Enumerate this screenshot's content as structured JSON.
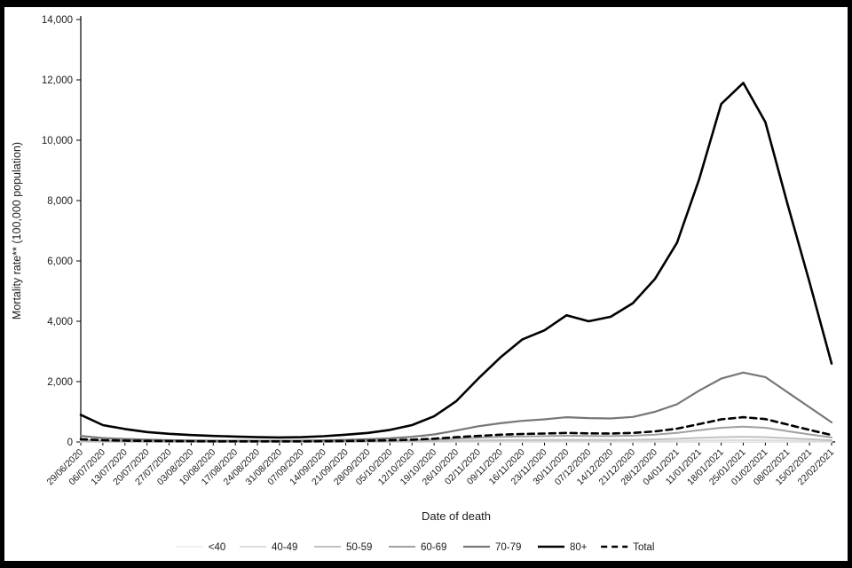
{
  "chart_data": {
    "type": "line",
    "title": "",
    "xlabel": "Date of death",
    "ylabel": "Mortality rate** (100,000 population)",
    "ylim": [
      0,
      14000
    ],
    "grid": false,
    "legend_position": "bottom",
    "yticks": [
      0,
      2000,
      4000,
      6000,
      8000,
      10000,
      12000,
      14000
    ],
    "ytick_labels": [
      "0",
      "2,000",
      "4,000",
      "6,000",
      "8,000",
      "10,000",
      "12,000",
      "14,000"
    ],
    "x": [
      "29/06/2020",
      "06/07/2020",
      "13/07/2020",
      "20/07/2020",
      "27/07/2020",
      "03/08/2020",
      "10/08/2020",
      "17/08/2020",
      "24/08/2020",
      "31/08/2020",
      "07/09/2020",
      "14/09/2020",
      "21/09/2020",
      "28/09/2020",
      "05/10/2020",
      "12/10/2020",
      "19/10/2020",
      "26/10/2020",
      "02/11/2020",
      "09/11/2020",
      "16/11/2020",
      "23/11/2020",
      "30/11/2020",
      "07/12/2020",
      "14/12/2020",
      "21/12/2020",
      "28/12/2020",
      "04/01/2021",
      "11/01/2021",
      "18/01/2021",
      "25/01/2021",
      "01/02/2021",
      "08/02/2021",
      "15/02/2021",
      "22/02/2021"
    ],
    "series": [
      {
        "name": "<40",
        "color": "#efefef",
        "width": 2,
        "dash": null,
        "values": [
          2,
          1,
          1,
          1,
          1,
          0,
          0,
          0,
          0,
          0,
          0,
          0,
          1,
          1,
          1,
          1,
          2,
          2,
          3,
          3,
          4,
          4,
          4,
          4,
          4,
          4,
          5,
          6,
          8,
          9,
          10,
          9,
          7,
          5,
          3
        ]
      },
      {
        "name": "40-49",
        "color": "#dcdcdc",
        "width": 2,
        "dash": null,
        "values": [
          8,
          6,
          4,
          3,
          3,
          2,
          2,
          2,
          2,
          2,
          2,
          2,
          3,
          4,
          5,
          7,
          10,
          14,
          18,
          21,
          23,
          24,
          25,
          24,
          24,
          26,
          30,
          37,
          48,
          57,
          62,
          57,
          44,
          32,
          20
        ]
      },
      {
        "name": "50-59",
        "color": "#c0c0c0",
        "width": 2,
        "dash": null,
        "values": [
          25,
          16,
          12,
          10,
          8,
          7,
          6,
          6,
          6,
          6,
          6,
          7,
          9,
          11,
          15,
          20,
          28,
          40,
          52,
          60,
          65,
          68,
          72,
          70,
          68,
          73,
          85,
          105,
          135,
          160,
          175,
          160,
          125,
          90,
          55
        ]
      },
      {
        "name": "60-69",
        "color": "#a0a0a0",
        "width": 2,
        "dash": null,
        "values": [
          60,
          40,
          30,
          25,
          20,
          18,
          15,
          14,
          14,
          14,
          15,
          18,
          22,
          28,
          38,
          52,
          75,
          110,
          145,
          170,
          185,
          195,
          210,
          200,
          195,
          210,
          245,
          300,
          390,
          470,
          510,
          470,
          360,
          250,
          150
        ]
      },
      {
        "name": "70-79",
        "color": "#767676",
        "width": 2.2,
        "dash": null,
        "values": [
          200,
          130,
          100,
          80,
          60,
          50,
          45,
          40,
          40,
          40,
          45,
          55,
          70,
          90,
          120,
          170,
          250,
          380,
          520,
          620,
          700,
          750,
          820,
          790,
          780,
          830,
          1000,
          1250,
          1700,
          2100,
          2300,
          2150,
          1650,
          1150,
          650
        ]
      },
      {
        "name": "80+",
        "color": "#000000",
        "width": 2.6,
        "dash": null,
        "values": [
          900,
          560,
          430,
          330,
          270,
          230,
          200,
          180,
          160,
          150,
          160,
          190,
          240,
          300,
          400,
          560,
          850,
          1350,
          2100,
          2800,
          3400,
          3700,
          4200,
          4000,
          4150,
          4600,
          5400,
          6600,
          8700,
          11200,
          11900,
          10600,
          7900,
          5300,
          2600
        ]
      },
      {
        "name": "Total",
        "color": "#000000",
        "width": 2.6,
        "dash": "7 5",
        "values": [
          90,
          60,
          45,
          35,
          30,
          25,
          22,
          20,
          20,
          20,
          22,
          26,
          32,
          42,
          55,
          75,
          110,
          160,
          200,
          240,
          265,
          280,
          300,
          285,
          280,
          300,
          350,
          440,
          590,
          750,
          820,
          760,
          580,
          400,
          230
        ]
      }
    ]
  }
}
